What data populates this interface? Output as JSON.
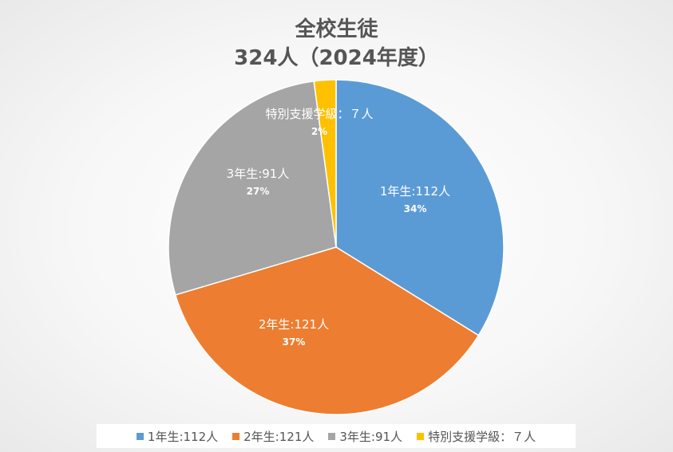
{
  "chart_data": {
    "type": "pie",
    "title": "全校生徒",
    "subtitle": "324人（2024年度）",
    "categories": [
      "1年生:112人",
      "2年生:121人",
      "3年生:91人",
      "特別支援学級：７人"
    ],
    "values": [
      112,
      121,
      91,
      7
    ],
    "percent_labels": [
      "34%",
      "37%",
      "27%",
      "2%"
    ],
    "colors": [
      "#5b9bd5",
      "#ed7d31",
      "#a5a5a5",
      "#ffc000"
    ],
    "legend_position": "bottom",
    "start_angle": "12 o'clock, clockwise"
  }
}
